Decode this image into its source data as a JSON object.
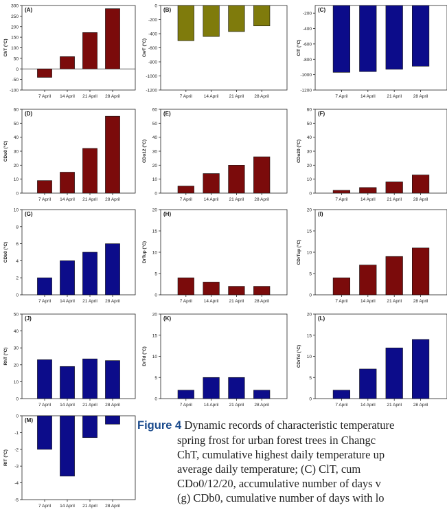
{
  "colors": {
    "maroon": "#7b0b0b",
    "olive": "#7f7b0c",
    "navy": "#0c0c8a"
  },
  "chart_data": [
    {
      "id": "A",
      "type": "bar",
      "panel_label": "(A)",
      "ylabel": "ChT (°C)",
      "categories": [
        "7 April",
        "14 April",
        "21 April",
        "28 April"
      ],
      "values": [
        -40,
        58,
        172,
        285
      ],
      "ylim": [
        -100,
        300
      ],
      "yticks": [
        -100,
        -50,
        0,
        50,
        100,
        150,
        200,
        250,
        300
      ],
      "color": "maroon"
    },
    {
      "id": "B",
      "type": "bar",
      "panel_label": "(B)",
      "ylabel": "CwT (°C)",
      "categories": [
        "7 April",
        "14 April",
        "21 April",
        "28 April"
      ],
      "values": [
        -500,
        -440,
        -370,
        -290
      ],
      "ylim": [
        -1200,
        0
      ],
      "yticks": [
        -1200,
        -1000,
        -800,
        -600,
        -400,
        -200,
        0
      ],
      "color": "olive"
    },
    {
      "id": "C",
      "type": "bar",
      "panel_label": "(C)",
      "ylabel": "ClT (°C)",
      "categories": [
        "7 April",
        "14 April",
        "21 April",
        "28 April"
      ],
      "values": [
        -970,
        -960,
        -930,
        -890
      ],
      "ylim": [
        -1200,
        -100
      ],
      "yticks": [
        -1200,
        -1000,
        -800,
        -600,
        -400,
        -200
      ],
      "color": "navy"
    },
    {
      "id": "D",
      "type": "bar",
      "panel_label": "(D)",
      "ylabel": "CDo0 (°C)",
      "categories": [
        "7 April",
        "14 April",
        "21 April",
        "28 April"
      ],
      "values": [
        9,
        15,
        32,
        55
      ],
      "ylim": [
        0,
        60
      ],
      "yticks": [
        0,
        10,
        20,
        30,
        40,
        50,
        60
      ],
      "color": "maroon"
    },
    {
      "id": "E",
      "type": "bar",
      "panel_label": "(E)",
      "ylabel": "CDo12 (°C)",
      "categories": [
        "7 April",
        "14 April",
        "21 April",
        "28 April"
      ],
      "values": [
        5,
        14,
        20,
        26
      ],
      "ylim": [
        0,
        60
      ],
      "yticks": [
        0,
        10,
        20,
        30,
        40,
        50,
        60
      ],
      "color": "maroon"
    },
    {
      "id": "F",
      "type": "bar",
      "panel_label": "(F)",
      "ylabel": "CDo20 (°C)",
      "categories": [
        "7 April",
        "14 April",
        "21 April",
        "28 April"
      ],
      "values": [
        2,
        4,
        8,
        13
      ],
      "ylim": [
        0,
        60
      ],
      "yticks": [
        0,
        10,
        20,
        30,
        40,
        50,
        60
      ],
      "color": "maroon"
    },
    {
      "id": "G",
      "type": "bar",
      "panel_label": "(G)",
      "ylabel": "CDb0 (°C)",
      "categories": [
        "7 April",
        "14 April",
        "21 April",
        "28 April"
      ],
      "values": [
        2,
        4,
        5,
        6
      ],
      "ylim": [
        0,
        10
      ],
      "yticks": [
        0,
        2,
        4,
        6,
        8,
        10
      ],
      "color": "navy"
    },
    {
      "id": "H",
      "type": "bar",
      "panel_label": "(H)",
      "ylabel": "DrTup (°C)",
      "categories": [
        "7 April",
        "14 April",
        "21 April",
        "28 April"
      ],
      "values": [
        4,
        3,
        2,
        2
      ],
      "ylim": [
        0,
        20
      ],
      "yticks": [
        0,
        5,
        10,
        15,
        20
      ],
      "color": "maroon"
    },
    {
      "id": "I",
      "type": "bar",
      "panel_label": "(I)",
      "ylabel": "CDrTup (°C)",
      "categories": [
        "7 April",
        "14 April",
        "21 April",
        "28 April"
      ],
      "values": [
        4,
        7,
        9,
        11
      ],
      "ylim": [
        0,
        20
      ],
      "yticks": [
        0,
        5,
        10,
        15,
        20
      ],
      "color": "maroon"
    },
    {
      "id": "J",
      "type": "bar",
      "panel_label": "(J)",
      "ylabel": "RhT (°C)",
      "categories": [
        "7 April",
        "14 April",
        "21 April",
        "28 April"
      ],
      "values": [
        23,
        19,
        23.5,
        22.5
      ],
      "ylim": [
        0,
        50
      ],
      "yticks": [
        0,
        10,
        20,
        30,
        40,
        50
      ],
      "color": "navy"
    },
    {
      "id": "K",
      "type": "bar",
      "panel_label": "(K)",
      "ylabel": "DrTd (°C)",
      "categories": [
        "7 April",
        "14 April",
        "21 April",
        "28 April"
      ],
      "values": [
        2,
        5,
        5,
        2
      ],
      "ylim": [
        0,
        20
      ],
      "yticks": [
        0,
        5,
        10,
        15,
        20
      ],
      "color": "navy"
    },
    {
      "id": "L",
      "type": "bar",
      "panel_label": "(L)",
      "ylabel": "CDrTd (°C)",
      "categories": [
        "7 April",
        "14 April",
        "21 April",
        "28 April"
      ],
      "values": [
        2,
        7,
        12,
        14
      ],
      "ylim": [
        0,
        20
      ],
      "yticks": [
        0,
        5,
        10,
        15,
        20
      ],
      "color": "navy"
    },
    {
      "id": "M",
      "type": "bar",
      "panel_label": "(M)",
      "ylabel": "RlT (°C)",
      "categories": [
        "7 April",
        "14 April",
        "21 April",
        "28 April"
      ],
      "values": [
        -2,
        -3.6,
        -1.3,
        -0.5
      ],
      "ylim": [
        -5,
        0
      ],
      "yticks": [
        -5,
        -4,
        -3,
        -2,
        -1,
        0
      ],
      "color": "navy"
    }
  ],
  "caption": {
    "label": "Figure 4",
    "line1": " Dynamic records of characteristic temperature",
    "line2": "spring frost for urban forest trees in Changc",
    "line3": "ChT, cumulative highest daily temperature up",
    "line4": "average daily temperature; (C) ClT, cum",
    "line5": "CDo0/12/20, accumulative number of days v",
    "line6": "(g) CDb0, cumulative number of days with lo"
  }
}
